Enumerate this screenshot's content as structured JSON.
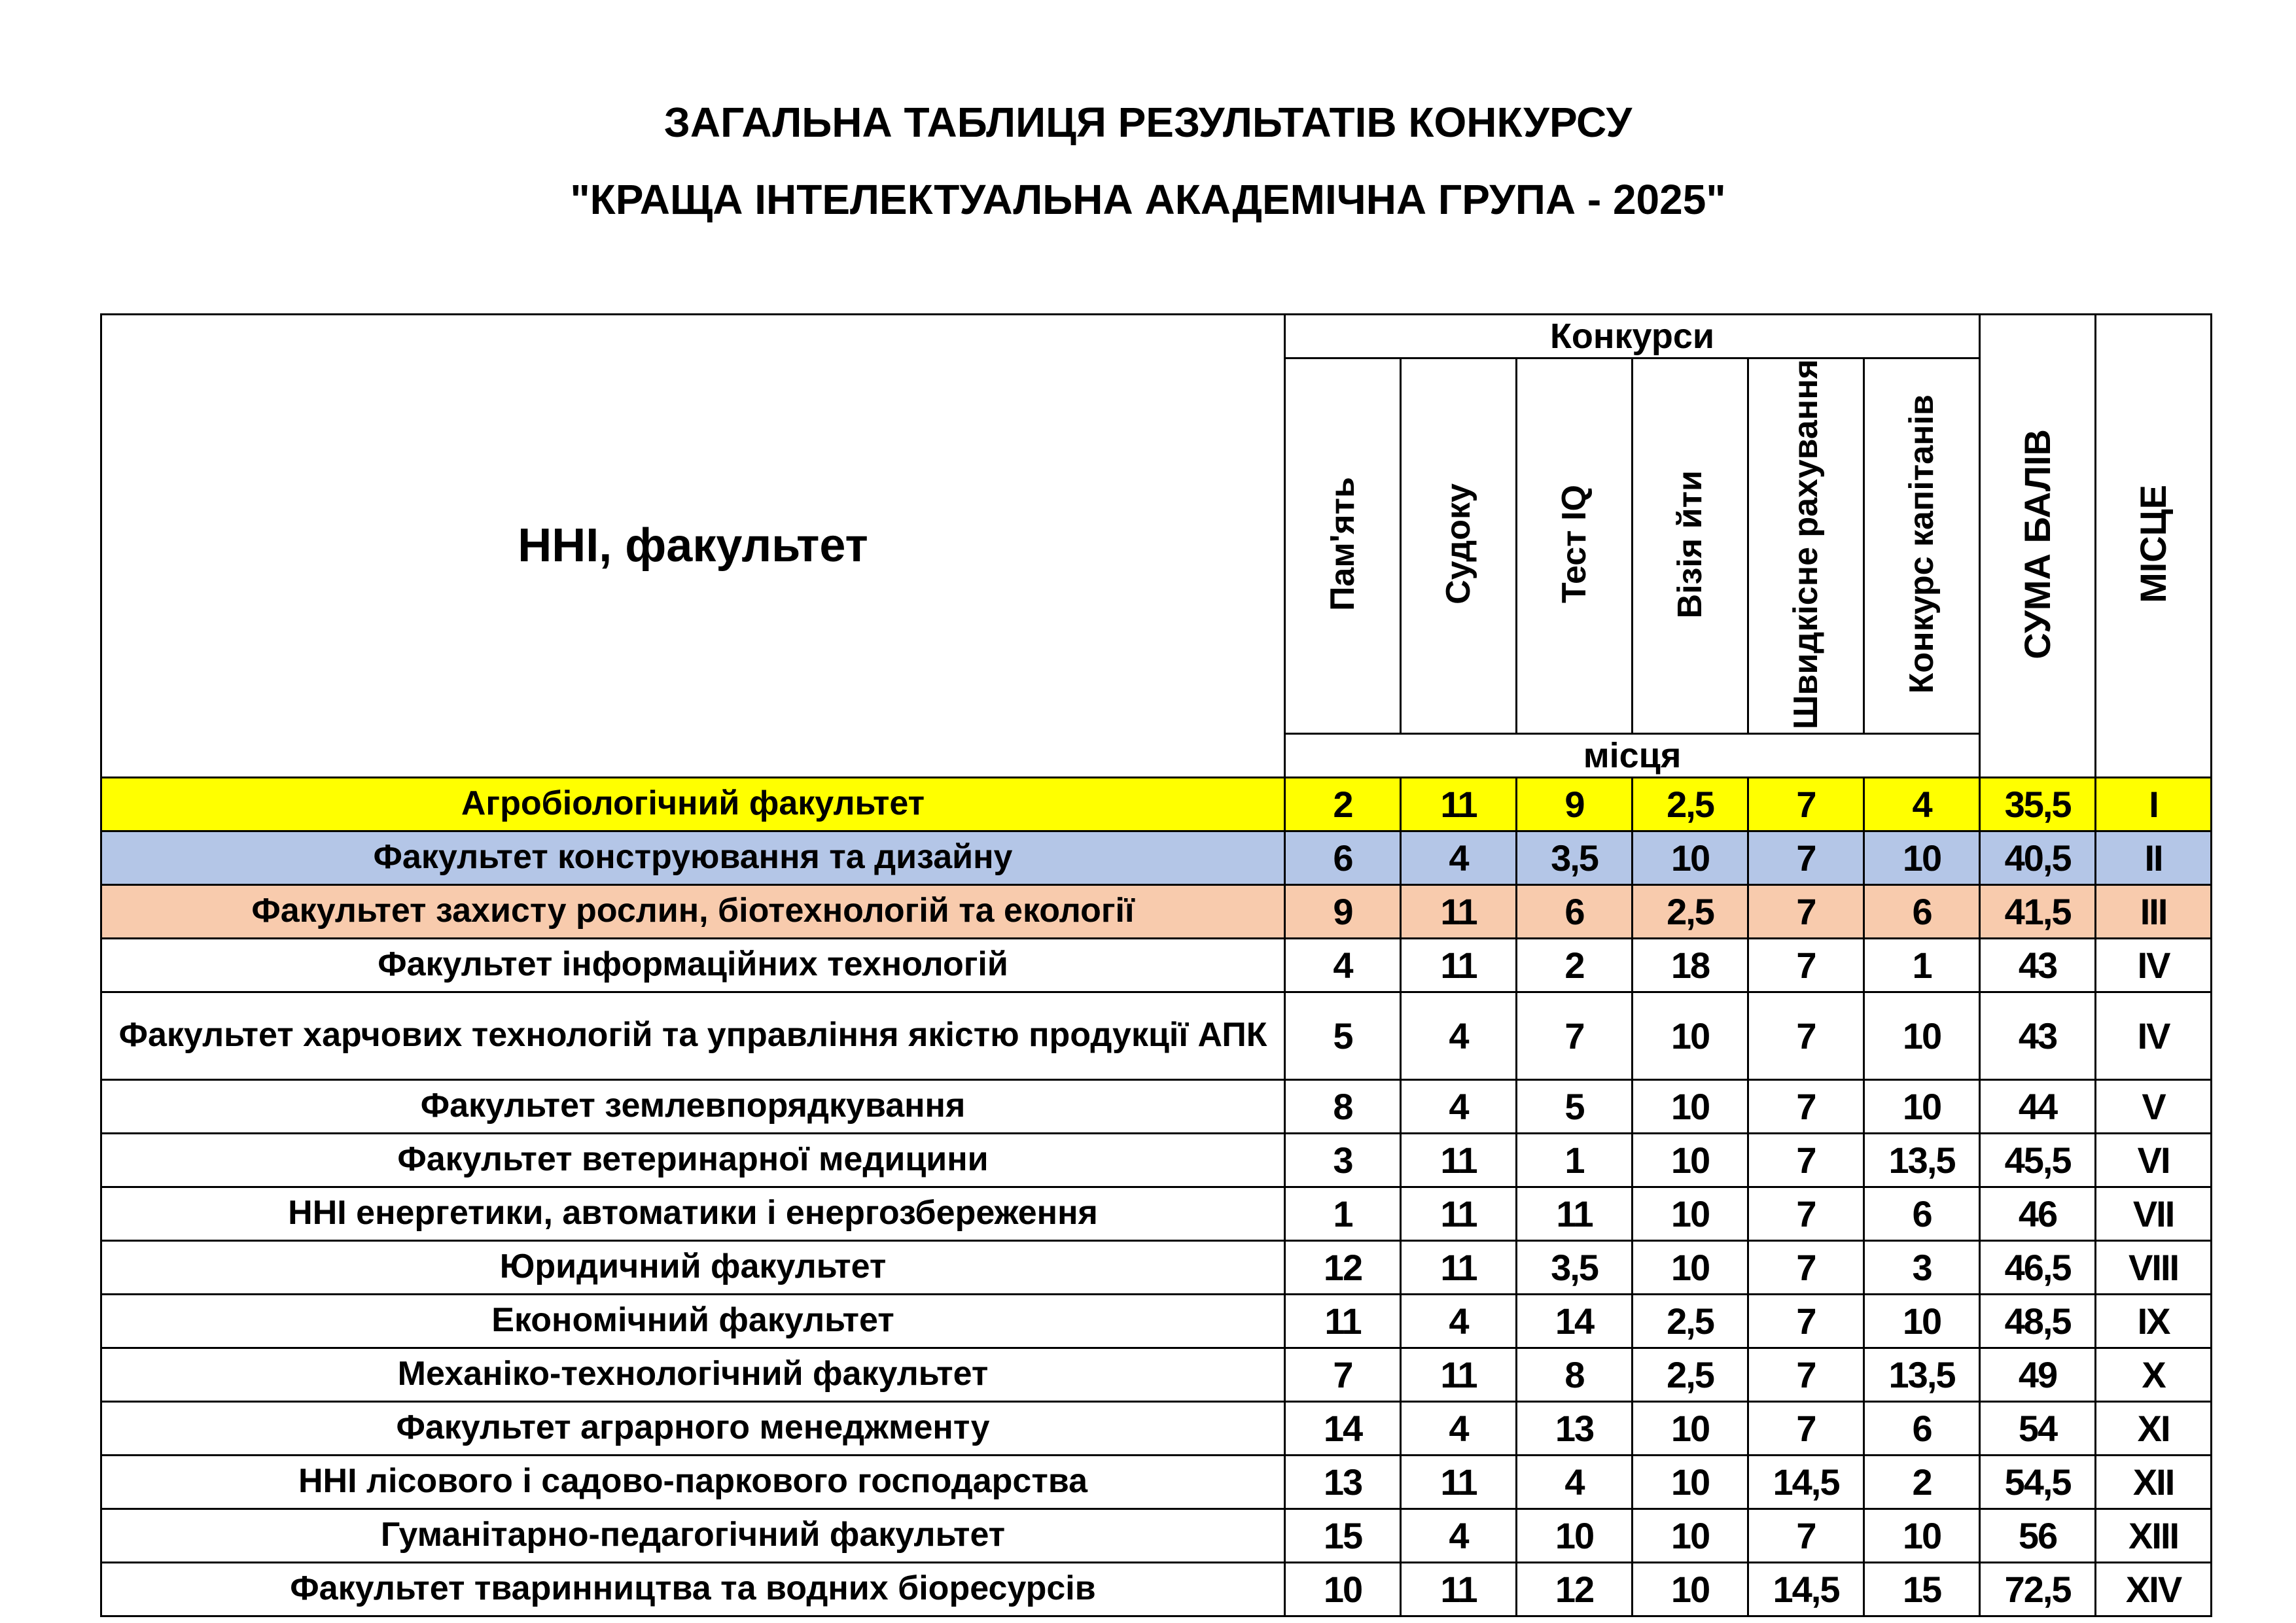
{
  "title": {
    "line1": "ЗАГАЛЬНА ТАБЛИЦЯ РЕЗУЛЬТАТІВ КОНКУРСУ",
    "line2": "\"КРАЩА ІНТЕЛЕКТУАЛЬНА АКАДЕМІЧНА ГРУПА - 2025\""
  },
  "table": {
    "header": {
      "faculty": "ННІ, факультет",
      "contests": "Конкурси",
      "contest_columns": [
        "Пам'ять",
        "Судоку",
        "Тест IQ",
        "Візія йти",
        "Швидкісне рахування",
        "Конкурс капітанів"
      ],
      "places": "місця",
      "sum": "СУМА БАЛІВ",
      "place": "МІСЦЕ"
    },
    "highlight_colors": {
      "first": "#FFFF00",
      "second": "#B4C6E7",
      "third": "#F8CBAD"
    },
    "rows": [
      {
        "name": "Агробіологічний факультет",
        "scores": [
          "2",
          "11",
          "9",
          "2,5",
          "7",
          "4"
        ],
        "sum": "35,5",
        "place": "I",
        "highlight": "first"
      },
      {
        "name": "Факультет конструювання та дизайну",
        "scores": [
          "6",
          "4",
          "3,5",
          "10",
          "7",
          "10"
        ],
        "sum": "40,5",
        "place": "II",
        "highlight": "second"
      },
      {
        "name": "Факультет захисту рослин, біотехнологій та екології",
        "scores": [
          "9",
          "11",
          "6",
          "2,5",
          "7",
          "6"
        ],
        "sum": "41,5",
        "place": "III",
        "highlight": "third"
      },
      {
        "name": "Факультет інформаційних технологій",
        "scores": [
          "4",
          "11",
          "2",
          "18",
          "7",
          "1"
        ],
        "sum": "43",
        "place": "IV"
      },
      {
        "name": "Факультет харчових технологій та управління якістю продукції АПК",
        "scores": [
          "5",
          "4",
          "7",
          "10",
          "7",
          "10"
        ],
        "sum": "43",
        "place": "IV",
        "tall": true
      },
      {
        "name": "Факультет землевпорядкування",
        "scores": [
          "8",
          "4",
          "5",
          "10",
          "7",
          "10"
        ],
        "sum": "44",
        "place": "V"
      },
      {
        "name": "Факультет ветеринарної медицини",
        "scores": [
          "3",
          "11",
          "1",
          "10",
          "7",
          "13,5"
        ],
        "sum": "45,5",
        "place": "VI"
      },
      {
        "name": "ННІ енергетики, автоматики і енергозбереження",
        "scores": [
          "1",
          "11",
          "11",
          "10",
          "7",
          "6"
        ],
        "sum": "46",
        "place": "VII"
      },
      {
        "name": "Юридичний факультет",
        "scores": [
          "12",
          "11",
          "3,5",
          "10",
          "7",
          "3"
        ],
        "sum": "46,5",
        "place": "VIII"
      },
      {
        "name": "Економічний факультет",
        "scores": [
          "11",
          "4",
          "14",
          "2,5",
          "7",
          "10"
        ],
        "sum": "48,5",
        "place": "IX"
      },
      {
        "name": "Механіко-технологічний факультет",
        "scores": [
          "7",
          "11",
          "8",
          "2,5",
          "7",
          "13,5"
        ],
        "sum": "49",
        "place": "X"
      },
      {
        "name": "Факультет аграрного менеджменту",
        "scores": [
          "14",
          "4",
          "13",
          "10",
          "7",
          "6"
        ],
        "sum": "54",
        "place": "XI"
      },
      {
        "name": "ННІ лісового і садово-паркового господарства",
        "scores": [
          "13",
          "11",
          "4",
          "10",
          "14,5",
          "2"
        ],
        "sum": "54,5",
        "place": "XII"
      },
      {
        "name": "Гуманітарно-педагогічний факультет",
        "scores": [
          "15",
          "4",
          "10",
          "10",
          "7",
          "10"
        ],
        "sum": "56",
        "place": "XIII"
      },
      {
        "name": "Факультет тваринництва та водних біоресурсів",
        "scores": [
          "10",
          "11",
          "12",
          "10",
          "14,5",
          "15"
        ],
        "sum": "72,5",
        "place": "XIV"
      }
    ]
  }
}
